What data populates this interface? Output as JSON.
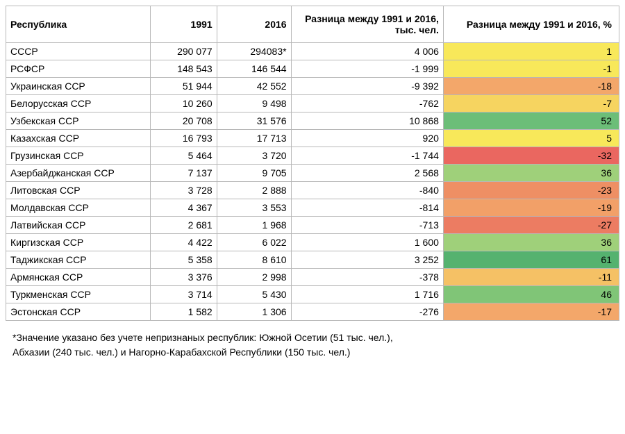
{
  "headers": {
    "republic": "Республика",
    "y1991": "1991",
    "y2016": "2016",
    "diff_abs": "Разница между 1991 и 2016, тыс. чел.",
    "diff_pct": "Разница между 1991 и 2016, %"
  },
  "colors": {
    "border": "#b7b7b7",
    "text": "#000000",
    "bg": "#ffffff"
  },
  "rows": [
    {
      "republic": "СССР",
      "y1991": "290 077",
      "y2016": "294083*",
      "diff": "4 006",
      "pct": "1",
      "pct_color": "#f8e85a"
    },
    {
      "republic": "РСФСР",
      "y1991": "148 543",
      "y2016": "146 544",
      "diff": "-1 999",
      "pct": "-1",
      "pct_color": "#f8e85a"
    },
    {
      "republic": "Украинская ССР",
      "y1991": "51 944",
      "y2016": "42 552",
      "diff": "-9 392",
      "pct": "-18",
      "pct_color": "#f3a76a"
    },
    {
      "republic": "Белорусская ССР",
      "y1991": "10 260",
      "y2016": "9 498",
      "diff": "-762",
      "pct": "-7",
      "pct_color": "#f6d460"
    },
    {
      "republic": "Узбекская ССР",
      "y1991": "20 708",
      "y2016": "31 576",
      "diff": "10 868",
      "pct": "52",
      "pct_color": "#6cbe78"
    },
    {
      "republic": "Казахская ССР",
      "y1991": "16 793",
      "y2016": "17 713",
      "diff": "920",
      "pct": "5",
      "pct_color": "#f8e85a"
    },
    {
      "republic": "Грузинская ССР",
      "y1991": "5 464",
      "y2016": "3 720",
      "diff": "-1 744",
      "pct": "-32",
      "pct_color": "#ea6760"
    },
    {
      "republic": "Азербайджанская ССР",
      "y1991": "7 137",
      "y2016": "9 705",
      "diff": "2 568",
      "pct": "36",
      "pct_color": "#9fd07a"
    },
    {
      "republic": "Литовская ССР",
      "y1991": "3 728",
      "y2016": "2 888",
      "diff": "-840",
      "pct": "-23",
      "pct_color": "#ee8f64"
    },
    {
      "republic": "Молдавская ССР",
      "y1991": "4 367",
      "y2016": "3 553",
      "diff": "-814",
      "pct": "-19",
      "pct_color": "#f2a068"
    },
    {
      "republic": "Латвийская ССР",
      "y1991": "2 681",
      "y2016": "1 968",
      "diff": "-713",
      "pct": "-27",
      "pct_color": "#ec7c62"
    },
    {
      "republic": "Киргизская ССР",
      "y1991": "4 422",
      "y2016": "6 022",
      "diff": "1 600",
      "pct": "36",
      "pct_color": "#9fd07a"
    },
    {
      "republic": "Таджикская ССР",
      "y1991": "5 358",
      "y2016": "8 610",
      "diff": "3 252",
      "pct": "61",
      "pct_color": "#55b26f"
    },
    {
      "republic": "Армянская ССР",
      "y1991": "3 376",
      "y2016": "2 998",
      "diff": "-378",
      "pct": "-11",
      "pct_color": "#f5c165"
    },
    {
      "republic": "Туркменская ССР",
      "y1991": "3 714",
      "y2016": "5 430",
      "diff": "1 716",
      "pct": "46",
      "pct_color": "#80c577"
    },
    {
      "republic": "Эстонская ССР",
      "y1991": "1 582",
      "y2016": "1 306",
      "diff": "-276",
      "pct": "-17",
      "pct_color": "#f3a76a"
    }
  ],
  "footnote_lines": [
    "*Значение указано без учете непризнаных республик: Южной Осетии (51 тыс. чел.),",
    "Абхазии (240 тыс. чел.) и Нагорно-Карабахской Республики (150 тыс. чел.)"
  ]
}
